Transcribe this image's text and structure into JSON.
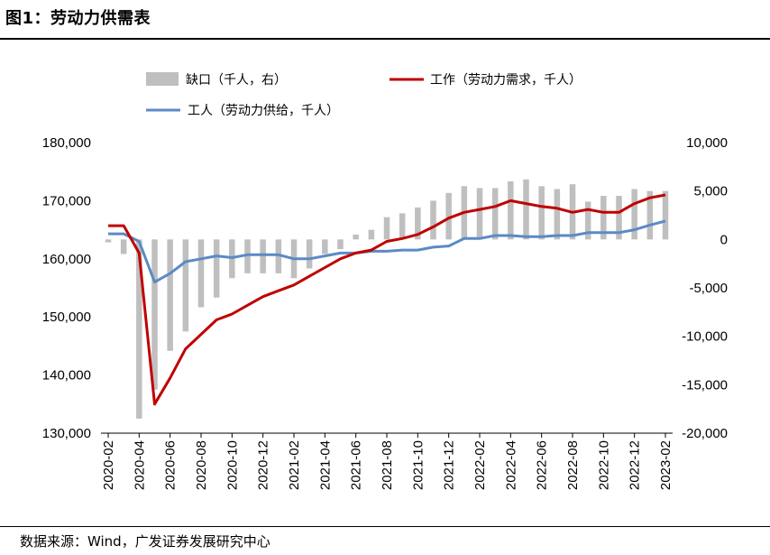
{
  "figure": {
    "title": "图1：劳动力供需表",
    "source": "数据来源：Wind，广发证券发展研究中心"
  },
  "colors": {
    "demand": "#c00000",
    "supply": "#5b8ac6",
    "gap": "#bfbfbf"
  },
  "chart_data": {
    "type": "bar+line",
    "title": "",
    "legend_position": "top",
    "grid": false,
    "x_tick_labels": [
      "2020-02",
      "2020-04",
      "2020-06",
      "2020-08",
      "2020-10",
      "2020-12",
      "2021-02",
      "2021-04",
      "2021-06",
      "2021-08",
      "2021-10",
      "2021-12",
      "2022-02",
      "2022-04",
      "2022-06",
      "2022-08",
      "2022-10",
      "2022-12",
      "2023-02"
    ],
    "x": [
      "2020-02",
      "2020-03",
      "2020-04",
      "2020-05",
      "2020-06",
      "2020-07",
      "2020-08",
      "2020-09",
      "2020-10",
      "2020-11",
      "2020-12",
      "2021-01",
      "2021-02",
      "2021-03",
      "2021-04",
      "2021-05",
      "2021-06",
      "2021-07",
      "2021-08",
      "2021-09",
      "2021-10",
      "2021-11",
      "2021-12",
      "2022-01",
      "2022-02",
      "2022-03",
      "2022-04",
      "2022-05",
      "2022-06",
      "2022-07",
      "2022-08",
      "2022-09",
      "2022-10",
      "2022-11",
      "2022-12",
      "2023-01",
      "2023-02"
    ],
    "left_axis": {
      "ylim": [
        130000,
        180000
      ],
      "ticks": [
        "130,000",
        "140,000",
        "150,000",
        "160,000",
        "170,000",
        "180,000"
      ]
    },
    "right_axis": {
      "ylim": [
        -20000,
        10000
      ],
      "ticks": [
        "-20,000",
        "-15,000",
        "-10,000",
        "-5,000",
        "0",
        "5,000",
        "10,000"
      ]
    },
    "series": [
      {
        "name": "缺口（千人，右）",
        "type": "bar",
        "axis": "right",
        "values": [
          -300,
          -1500,
          -18500,
          -15500,
          -11500,
          -9500,
          -7000,
          -6000,
          -4000,
          -3500,
          -3500,
          -3500,
          -4000,
          -3000,
          -1500,
          -1000,
          500,
          1000,
          2300,
          2700,
          3300,
          4000,
          4800,
          5500,
          5300,
          5300,
          6000,
          6200,
          5500,
          5200,
          5700,
          3900,
          4500,
          4500,
          5200,
          5000,
          5000
        ]
      },
      {
        "name": "工作（劳动力需求，千人）",
        "type": "line",
        "axis": "left",
        "values": [
          165700,
          165700,
          161000,
          135000,
          139500,
          144500,
          147000,
          149500,
          150500,
          152000,
          153500,
          154500,
          155500,
          157000,
          158500,
          160000,
          161000,
          161500,
          163000,
          163500,
          164200,
          165500,
          167000,
          168000,
          168500,
          169000,
          170000,
          169500,
          169000,
          168700,
          168000,
          168500,
          168000,
          168000,
          169500,
          170500,
          171000
        ]
      },
      {
        "name": "工人（劳动力供给，千人）",
        "type": "line",
        "axis": "left",
        "values": [
          164300,
          164300,
          163000,
          156000,
          157500,
          159500,
          160000,
          160500,
          160200,
          160700,
          160700,
          160700,
          160000,
          160000,
          160500,
          161000,
          161000,
          161300,
          161300,
          161500,
          161500,
          162000,
          162200,
          163500,
          163500,
          164000,
          164000,
          163800,
          163800,
          164000,
          164000,
          164500,
          164500,
          164500,
          165000,
          165800,
          166500
        ]
      }
    ]
  }
}
